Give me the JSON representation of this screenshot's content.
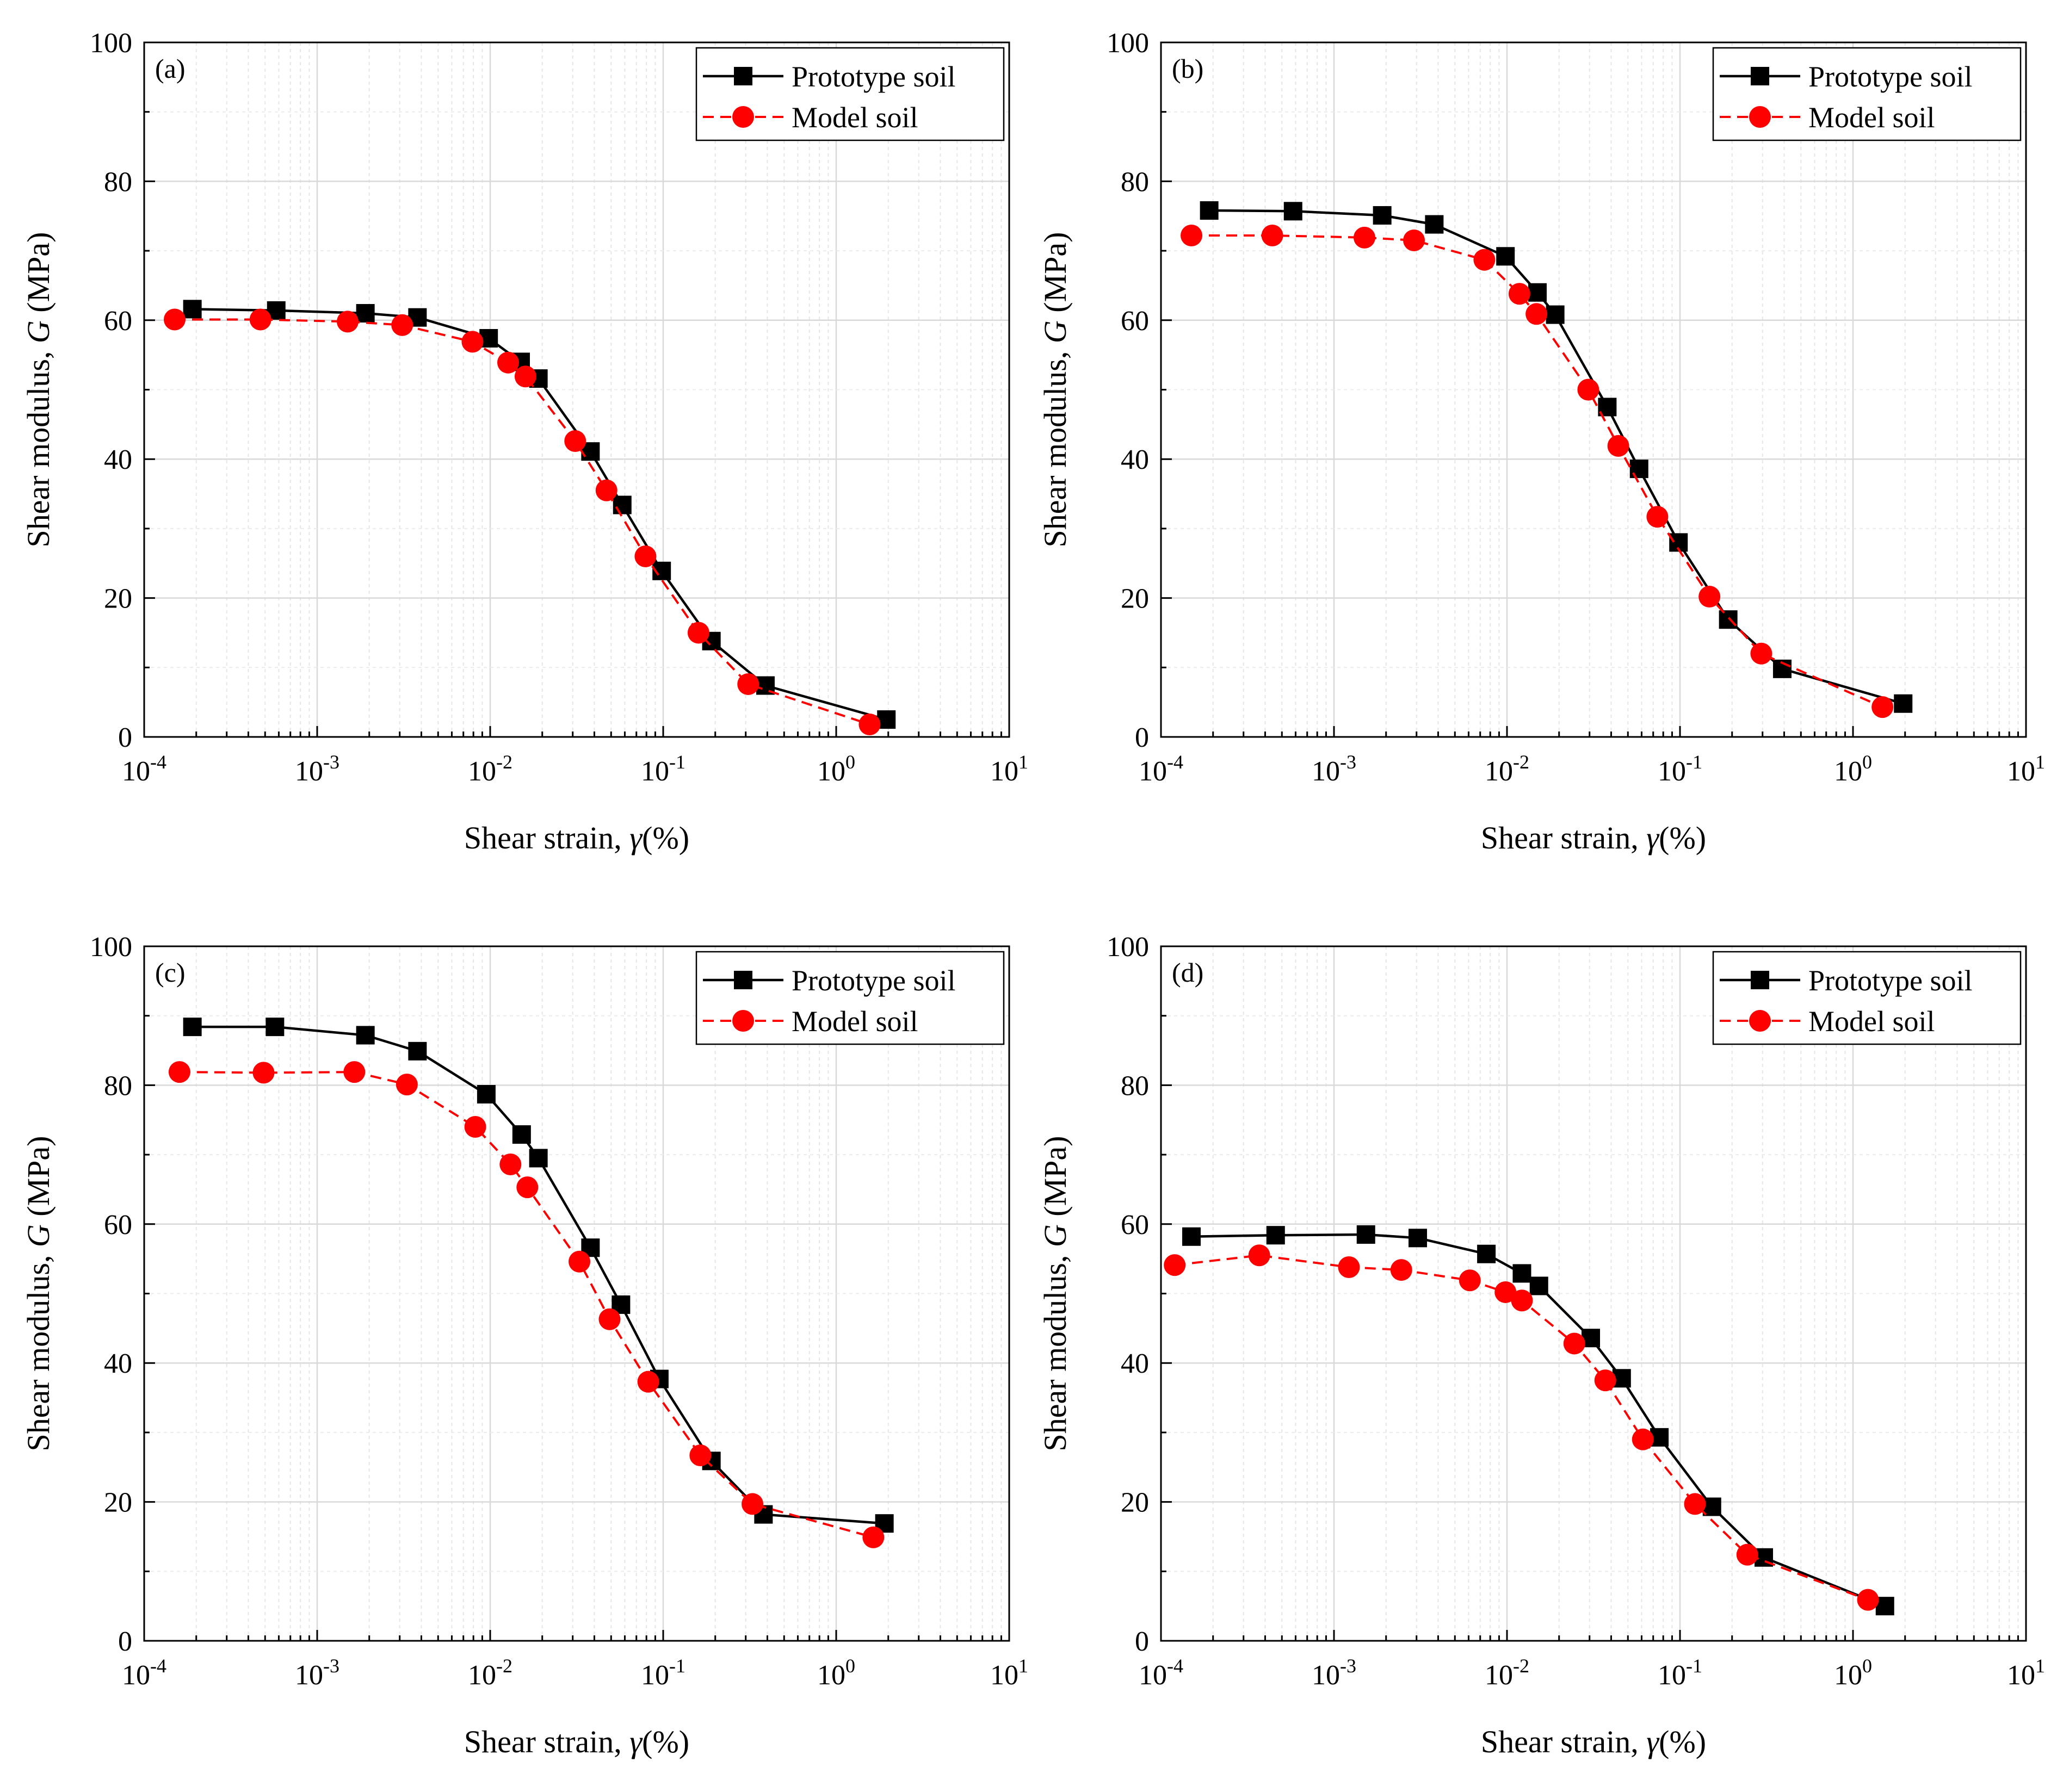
{
  "figure": {
    "ylabel_prefix": "Shear modulus, ",
    "ylabel_var": "G",
    "ylabel_suffix": " (MPa)",
    "xlabel_prefix": "Shear strain, ",
    "xlabel_var": "γ",
    "xlabel_suffix": "(%)",
    "legend": [
      "Prototype soil",
      "Model soil"
    ],
    "colors": {
      "prototype": "#000000",
      "model": "#ff0000",
      "grid": "#d9d9d9",
      "axis": "#000000"
    }
  },
  "chart_data": [
    {
      "type": "line",
      "panel_label": "(a)",
      "xscale": "log",
      "xlim": [
        0.0001,
        10
      ],
      "ylim": [
        0,
        100
      ],
      "x_ticks": [
        {
          "base": "10",
          "exp": "-4"
        },
        {
          "base": "10",
          "exp": "-3"
        },
        {
          "base": "10",
          "exp": "-2"
        },
        {
          "base": "10",
          "exp": "-1"
        },
        {
          "base": "10",
          "exp": "0"
        },
        {
          "base": "10",
          "exp": "1"
        }
      ],
      "y_ticks": [
        "0",
        "20",
        "40",
        "60",
        "80",
        "100"
      ],
      "legend_position": "top-right",
      "series": [
        {
          "name": "Prototype soil",
          "marker": "square",
          "line": "solid",
          "color": "#000000",
          "x": [
            0.00019,
            0.00058,
            0.0019,
            0.0038,
            0.0098,
            0.015,
            0.019,
            0.038,
            0.058,
            0.098,
            0.19,
            0.39,
            1.95
          ],
          "y": [
            61.6,
            61.4,
            61.0,
            60.4,
            57.4,
            54.0,
            51.6,
            41.1,
            33.4,
            23.9,
            13.8,
            7.4,
            2.5
          ]
        },
        {
          "name": "Model soil",
          "marker": "circle",
          "line": "dashed",
          "color": "#ff0000",
          "x": [
            0.00015,
            0.00047,
            0.0015,
            0.0031,
            0.0079,
            0.0127,
            0.016,
            0.031,
            0.047,
            0.079,
            0.16,
            0.31,
            1.56
          ],
          "y": [
            60.1,
            60.1,
            59.8,
            59.3,
            56.9,
            53.9,
            51.9,
            42.6,
            35.5,
            26.0,
            15.0,
            7.6,
            1.8
          ]
        }
      ]
    },
    {
      "type": "line",
      "panel_label": "(b)",
      "xscale": "log",
      "xlim": [
        0.0001,
        10
      ],
      "ylim": [
        0,
        100
      ],
      "x_ticks": [
        {
          "base": "10",
          "exp": "-4"
        },
        {
          "base": "10",
          "exp": "-3"
        },
        {
          "base": "10",
          "exp": "-2"
        },
        {
          "base": "10",
          "exp": "-1"
        },
        {
          "base": "10",
          "exp": "0"
        },
        {
          "base": "10",
          "exp": "1"
        }
      ],
      "y_ticks": [
        "0",
        "20",
        "40",
        "60",
        "80",
        "100"
      ],
      "legend_position": "top-right",
      "series": [
        {
          "name": "Prototype soil",
          "marker": "square",
          "line": "solid",
          "color": "#000000",
          "x": [
            0.00019,
            0.00058,
            0.0019,
            0.0038,
            0.0098,
            0.015,
            0.019,
            0.038,
            0.058,
            0.098,
            0.19,
            0.39,
            1.95
          ],
          "y": [
            75.8,
            75.7,
            75.1,
            73.8,
            69.2,
            64.0,
            60.8,
            47.5,
            38.6,
            28.0,
            16.9,
            9.8,
            4.8
          ]
        },
        {
          "name": "Model soil",
          "marker": "circle",
          "line": "dashed",
          "color": "#ff0000",
          "x": [
            0.00015,
            0.00044,
            0.0015,
            0.0029,
            0.0074,
            0.0118,
            0.0148,
            0.0295,
            0.044,
            0.074,
            0.148,
            0.295,
            1.48
          ],
          "y": [
            72.2,
            72.2,
            71.9,
            71.5,
            68.7,
            63.8,
            60.9,
            50.0,
            41.9,
            31.7,
            20.2,
            12.0,
            4.3
          ]
        }
      ]
    },
    {
      "type": "line",
      "panel_label": "(c)",
      "xscale": "log",
      "xlim": [
        0.0001,
        10
      ],
      "ylim": [
        0,
        100
      ],
      "x_ticks": [
        {
          "base": "10",
          "exp": "-4"
        },
        {
          "base": "10",
          "exp": "-3"
        },
        {
          "base": "10",
          "exp": "-2"
        },
        {
          "base": "10",
          "exp": "-1"
        },
        {
          "base": "10",
          "exp": "0"
        },
        {
          "base": "10",
          "exp": "1"
        }
      ],
      "y_ticks": [
        "0",
        "20",
        "40",
        "60",
        "80",
        "100"
      ],
      "legend_position": "top-right",
      "series": [
        {
          "name": "Prototype soil",
          "marker": "square",
          "line": "solid",
          "color": "#000000",
          "x": [
            0.00019,
            0.00057,
            0.0019,
            0.0038,
            0.0095,
            0.0152,
            0.019,
            0.038,
            0.057,
            0.095,
            0.19,
            0.38,
            1.9
          ],
          "y": [
            88.4,
            88.4,
            87.2,
            84.9,
            78.7,
            72.9,
            69.5,
            56.6,
            48.4,
            37.7,
            25.9,
            18.2,
            16.9
          ]
        },
        {
          "name": "Model soil",
          "marker": "circle",
          "line": "dashed",
          "color": "#ff0000",
          "x": [
            0.00016,
            0.00049,
            0.00164,
            0.0033,
            0.0082,
            0.0131,
            0.0164,
            0.0328,
            0.049,
            0.082,
            0.164,
            0.328,
            1.64
          ],
          "y": [
            81.9,
            81.8,
            81.9,
            80.1,
            74.0,
            68.6,
            65.3,
            54.6,
            46.3,
            37.3,
            26.7,
            19.7,
            14.9
          ]
        }
      ]
    },
    {
      "type": "line",
      "panel_label": "(d)",
      "xscale": "log",
      "xlim": [
        0.0001,
        10
      ],
      "ylim": [
        0,
        100
      ],
      "x_ticks": [
        {
          "base": "10",
          "exp": "-4"
        },
        {
          "base": "10",
          "exp": "-3"
        },
        {
          "base": "10",
          "exp": "-2"
        },
        {
          "base": "10",
          "exp": "-1"
        },
        {
          "base": "10",
          "exp": "0"
        },
        {
          "base": "10",
          "exp": "1"
        }
      ],
      "y_ticks": [
        "0",
        "20",
        "40",
        "60",
        "80",
        "100"
      ],
      "legend_position": "top-right",
      "series": [
        {
          "name": "Prototype soil",
          "marker": "square",
          "line": "solid",
          "color": "#000000",
          "x": [
            0.00015,
            0.00046,
            0.00153,
            0.00305,
            0.0076,
            0.0122,
            0.0153,
            0.0305,
            0.046,
            0.076,
            0.153,
            0.305,
            1.53
          ],
          "y": [
            58.2,
            58.4,
            58.5,
            58.0,
            55.7,
            52.9,
            51.1,
            43.6,
            37.8,
            29.3,
            19.3,
            12.0,
            5.0
          ]
        },
        {
          "name": "Model soil",
          "marker": "circle",
          "line": "dashed",
          "color": "#ff0000",
          "x": [
            0.00012,
            0.00037,
            0.00122,
            0.00245,
            0.0061,
            0.0098,
            0.0122,
            0.0245,
            0.037,
            0.061,
            0.122,
            0.245,
            1.22
          ],
          "y": [
            54.1,
            55.5,
            53.8,
            53.4,
            51.9,
            50.2,
            49.0,
            42.8,
            37.5,
            29.0,
            19.7,
            12.4,
            5.9
          ]
        }
      ]
    }
  ]
}
